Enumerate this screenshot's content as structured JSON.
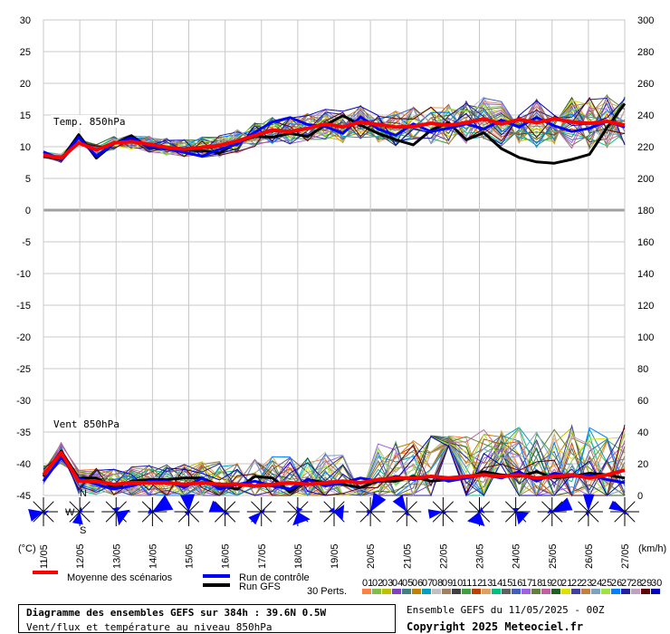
{
  "chart_data": {
    "type": "line",
    "left_axis": {
      "label": "(°C)",
      "ticks": [
        30,
        25,
        20,
        15,
        10,
        5,
        0,
        -5,
        -10,
        -15,
        -20,
        -25,
        -30,
        -35,
        -40,
        -45
      ]
    },
    "right_axis": {
      "label": "(km/h)",
      "ticks": [
        300,
        280,
        260,
        240,
        220,
        200,
        180,
        160,
        140,
        120,
        100,
        80,
        60,
        40,
        20,
        0
      ]
    },
    "x_ticks": [
      "11/05",
      "12/05",
      "13/05",
      "14/05",
      "15/05",
      "16/05",
      "17/05",
      "18/05",
      "19/05",
      "20/05",
      "21/05",
      "22/05",
      "23/05",
      "24/05",
      "25/05",
      "26/05",
      "27/05"
    ],
    "panel_labels": {
      "temp": "Temp. 850hPa",
      "wind": "Vent 850hPa"
    },
    "wind_rose_labels": {
      "n": "N",
      "s": "S",
      "w": "W"
    },
    "series": [
      {
        "name": "Moyenne des scénarios",
        "color": "#ff0000",
        "temp_values": [
          8.7,
          8.2,
          10.6,
          9.5,
          10.6,
          10.8,
          10.4,
          9.9,
          9.6,
          9.9,
          10.2,
          10.9,
          11.8,
          12.6,
          12.4,
          12.9,
          13.6,
          13.1,
          13.9,
          13.5,
          13.1,
          13.2,
          13.7,
          13.4,
          13.8,
          14.4,
          13.6,
          14.3,
          13.8,
          14.4,
          13.9,
          13.7,
          14.0,
          13.4
        ],
        "wind_values": [
          13,
          27,
          9,
          9,
          7,
          8,
          8,
          8,
          7,
          8,
          7,
          7,
          6,
          7,
          8,
          7,
          8,
          9,
          8,
          10,
          11,
          11,
          12,
          11,
          12,
          13,
          12,
          13,
          11,
          12,
          13,
          11,
          13,
          16
        ]
      },
      {
        "name": "Run de contrôle",
        "color": "#0000ff",
        "temp_values": [
          9.2,
          8.0,
          11.5,
          8.5,
          10.5,
          11.4,
          10.0,
          9.6,
          9.1,
          8.5,
          9.6,
          10.4,
          12.3,
          13.9,
          14.6,
          13.5,
          13.2,
          12.1,
          14.7,
          12.8,
          11.8,
          13.6,
          12.4,
          12.9,
          13.6,
          12.8,
          14.2,
          13.1,
          14.6,
          13.3,
          12.4,
          12.9,
          14.0,
          13.1
        ],
        "wind_values": [
          9,
          24,
          11,
          7,
          4,
          6,
          9,
          9,
          5,
          11,
          4,
          7,
          9,
          6,
          4,
          10,
          6,
          8,
          11,
          9,
          12,
          10,
          12,
          9,
          11,
          13,
          11,
          15,
          9,
          14,
          12,
          13,
          10,
          8
        ]
      },
      {
        "name": "Run GFS",
        "color": "#000000",
        "temp_values": [
          8.5,
          8.0,
          11.9,
          8.2,
          10.5,
          11.7,
          9.9,
          9.6,
          9.5,
          9.4,
          9.0,
          10.7,
          11.6,
          11.5,
          12.1,
          11.6,
          13.4,
          14.9,
          13.4,
          12.1,
          11.1,
          10.3,
          12.6,
          13.8,
          11.1,
          12.2,
          9.7,
          8.3,
          7.6,
          7.4,
          8.0,
          8.8,
          13.0,
          16.8
        ],
        "wind_values": [
          12,
          28,
          11,
          11,
          5,
          9,
          10,
          10,
          11,
          11,
          6,
          4,
          12,
          11,
          2,
          10,
          8,
          7,
          5,
          9,
          9,
          12,
          9,
          10,
          11,
          15,
          13,
          12,
          15,
          11,
          12,
          14,
          13,
          11
        ]
      }
    ]
  },
  "legend": {
    "mean_label": "Moyenne des scénarios",
    "control_label": "Run de contrôle",
    "gfs_label": "Run GFS",
    "perts_label": "30 Perts.",
    "pert_numbers": [
      "01",
      "02",
      "03",
      "04",
      "05",
      "06",
      "07",
      "08",
      "09",
      "10",
      "11",
      "12",
      "13",
      "14",
      "15",
      "16",
      "17",
      "18",
      "19",
      "20",
      "21",
      "22",
      "23",
      "24",
      "25",
      "26",
      "27",
      "28",
      "29",
      "30"
    ],
    "pert_colors": [
      "#ff8040",
      "#80c040",
      "#c0c000",
      "#8040c0",
      "#408080",
      "#c08000",
      "#00a0c0",
      "#c0c0c0",
      "#a08060",
      "#404040",
      "#40a040",
      "#c04000",
      "#e0a060",
      "#00c080",
      "#606060",
      "#4060c0",
      "#a060e0",
      "#608040",
      "#c060a0",
      "#206020",
      "#e0e000",
      "#4040a0",
      "#c08040",
      "#80a0c0",
      "#a0e040",
      "#0080ff",
      "#2020a0",
      "#c0a0c0",
      "#600000",
      "#0000c0"
    ]
  },
  "info": {
    "title": "Diagramme des ensembles GEFS sur 384h : 39.6N 0.5W",
    "subtitle": "Vent/flux et température au niveau 850hPa",
    "ensemble": "Ensemble GEFS du 11/05/2025 - 00Z",
    "copyright": "Copyright 2025 Meteociel.fr"
  }
}
